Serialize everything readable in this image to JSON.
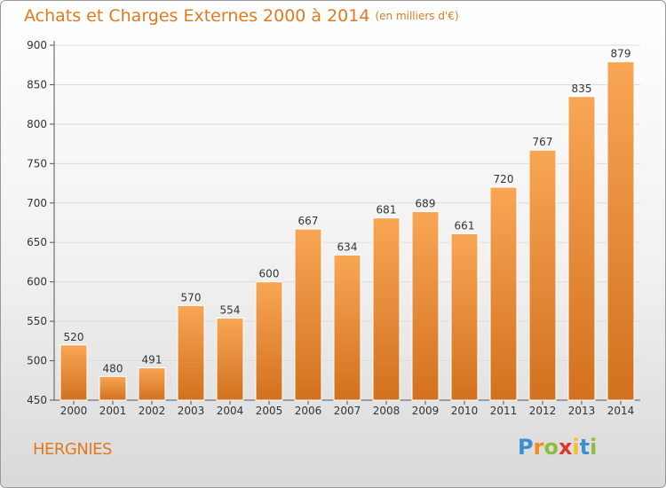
{
  "title": "Achats et Charges Externes 2000 à 2014",
  "unit": "(en milliers d'€)",
  "commune": "HERGNIES",
  "logo": {
    "text": "Proxiti",
    "letters": [
      "P",
      "r",
      "o",
      "x",
      "i",
      "t",
      "i"
    ],
    "colors": [
      "#3b8fd4",
      "#f28a1c",
      "#8bbf3a",
      "#e2352b",
      "#f2c21b",
      "#3b8fd4",
      "#8bbf3a"
    ]
  },
  "colors": {
    "bar_top": "#f8a655",
    "bar_bottom": "#d2711e",
    "accent": "#e07a1f",
    "grid": "#dcdcdc"
  },
  "chart_data": {
    "type": "bar",
    "title": "Achats et Charges Externes 2000 à 2014",
    "subtitle": "(en milliers d'€)",
    "xlabel": "",
    "ylabel": "",
    "categories": [
      "2000",
      "2001",
      "2002",
      "2003",
      "2004",
      "2005",
      "2006",
      "2007",
      "2008",
      "2009",
      "2010",
      "2011",
      "2012",
      "2013",
      "2014"
    ],
    "values": [
      520,
      480,
      491,
      570,
      554,
      600,
      667,
      634,
      681,
      689,
      661,
      720,
      767,
      835,
      879
    ],
    "ylim": [
      450,
      900
    ],
    "yticks": [
      450,
      500,
      550,
      600,
      650,
      700,
      750,
      800,
      850,
      900
    ],
    "grid": true,
    "legend": "none"
  }
}
